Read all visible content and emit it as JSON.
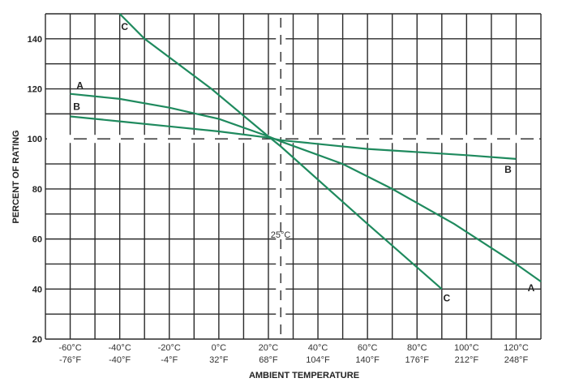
{
  "chart_data": {
    "type": "line",
    "xlabel": "AMBIENT TEMPERATURE",
    "ylabel": "PERCENT OF RATING",
    "xlim": [
      -70,
      130
    ],
    "ylim": [
      20,
      150
    ],
    "grid": true,
    "x_tick_labels": [
      {
        "c": "-60°C",
        "f": "-76°F",
        "x": -60
      },
      {
        "c": "-40°C",
        "f": "-40°F",
        "x": -40
      },
      {
        "c": "-20°C",
        "f": "-4°F",
        "x": -20
      },
      {
        "c": "0°C",
        "f": "32°F",
        "x": 0
      },
      {
        "c": "20°C",
        "f": "68°F",
        "x": 20
      },
      {
        "c": "40°C",
        "f": "104°F",
        "x": 40
      },
      {
        "c": "60°C",
        "f": "140°F",
        "x": 60
      },
      {
        "c": "80°C",
        "f": "176°F",
        "x": 80
      },
      {
        "c": "100°C",
        "f": "212°F",
        "x": 100
      },
      {
        "c": "120°C",
        "f": "248°F",
        "x": 120
      }
    ],
    "y_ticks": [
      20,
      40,
      60,
      80,
      100,
      120,
      140
    ],
    "reference_lines": {
      "vertical": {
        "x": 25,
        "label": "25°C"
      },
      "horizontal": {
        "y": 100
      }
    },
    "line_color": "#1f8a5e",
    "series": [
      {
        "name": "A",
        "points": [
          [
            -60,
            118
          ],
          [
            -40,
            116
          ],
          [
            -20,
            112.5
          ],
          [
            0,
            108
          ],
          [
            20,
            101
          ],
          [
            25,
            99
          ],
          [
            50,
            90
          ],
          [
            70,
            80
          ],
          [
            95,
            66
          ],
          [
            120,
            50
          ],
          [
            130,
            43
          ]
        ]
      },
      {
        "name": "B",
        "points": [
          [
            -60,
            109
          ],
          [
            -40,
            107
          ],
          [
            -20,
            105
          ],
          [
            0,
            103
          ],
          [
            20,
            100.5
          ],
          [
            25,
            99.5
          ],
          [
            60,
            96
          ],
          [
            100,
            93.5
          ],
          [
            120,
            92
          ]
        ]
      },
      {
        "name": "C",
        "points": [
          [
            -40,
            150
          ],
          [
            -30,
            140
          ],
          [
            -3,
            120
          ],
          [
            20,
            101
          ],
          [
            25,
            97
          ],
          [
            60,
            66
          ],
          [
            90,
            40
          ]
        ]
      }
    ]
  }
}
